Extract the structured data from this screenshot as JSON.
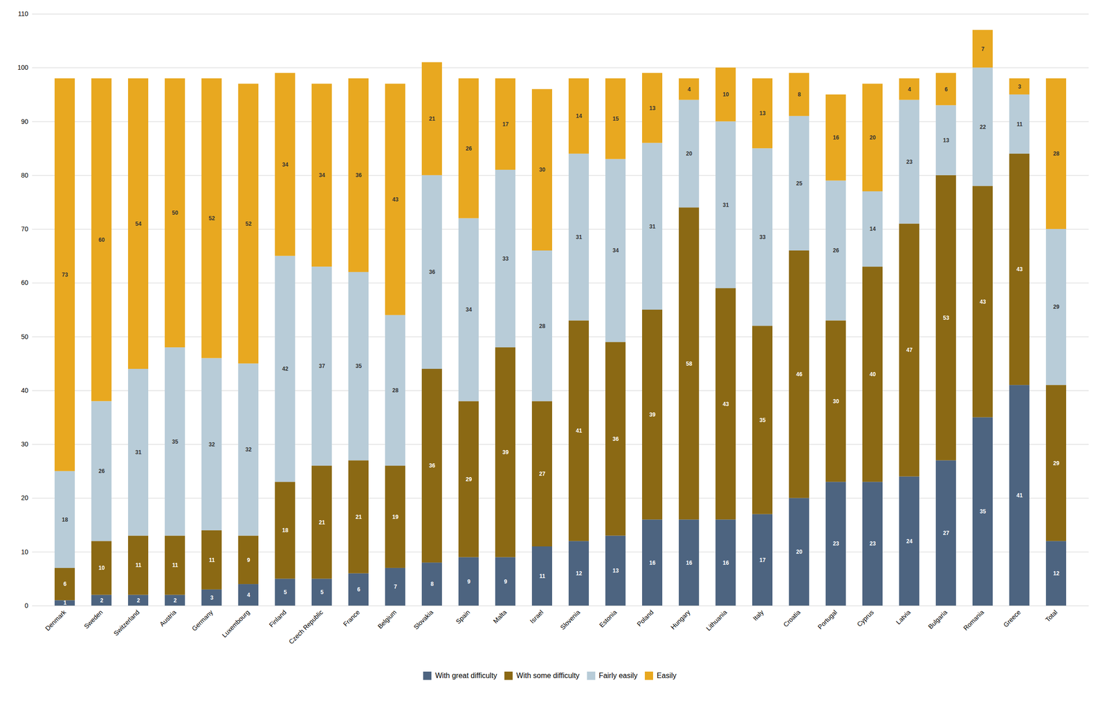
{
  "chart_data": {
    "type": "bar",
    "stacked": true,
    "categories": [
      "Denmark",
      "Sweden",
      "Switzerland",
      "Austria",
      "Germany",
      "Luxembourg",
      "Finland",
      "Czech Republic",
      "France",
      "Belgium",
      "Slovakia",
      "Spain",
      "Malta",
      "Israel",
      "Slovenia",
      "Estonia",
      "Poland",
      "Hungary",
      "Lithuania",
      "Italy",
      "Croatia",
      "Portugal",
      "Cyprus",
      "Latvia",
      "Bulgaria",
      "Romania",
      "Greece",
      "Total"
    ],
    "series": [
      {
        "name": "With great difficulty",
        "color": "#4d6480",
        "values": [
          1,
          2,
          2,
          2,
          3,
          4,
          5,
          5,
          6,
          7,
          8,
          9,
          9,
          11,
          12,
          13,
          16,
          16,
          16,
          17,
          20,
          23,
          23,
          24,
          27,
          35,
          41,
          12
        ]
      },
      {
        "name": "With some difficulty",
        "color": "#8B6914",
        "values": [
          6,
          10,
          11,
          11,
          11,
          9,
          18,
          21,
          21,
          19,
          36,
          29,
          39,
          27,
          41,
          36,
          39,
          58,
          43,
          35,
          46,
          30,
          40,
          47,
          53,
          43,
          43,
          29
        ]
      },
      {
        "name": "Fairly easily",
        "color": "#b8ccd8",
        "values": [
          18,
          26,
          31,
          35,
          32,
          32,
          42,
          37,
          35,
          28,
          36,
          34,
          33,
          28,
          31,
          34,
          31,
          20,
          31,
          33,
          25,
          26,
          14,
          23,
          13,
          22,
          11,
          29
        ]
      },
      {
        "name": "Easily",
        "color": "#E8A820",
        "values": [
          73,
          60,
          54,
          50,
          52,
          52,
          34,
          34,
          36,
          43,
          21,
          26,
          17,
          30,
          14,
          15,
          13,
          4,
          10,
          13,
          8,
          16,
          20,
          4,
          6,
          7,
          3,
          28
        ]
      }
    ],
    "ylim": [
      0,
      110
    ],
    "yticks": [
      0,
      10,
      20,
      30,
      40,
      50,
      60,
      70,
      80,
      90,
      100,
      110
    ],
    "grid": true,
    "legend": "bottom",
    "data_labels": true
  }
}
